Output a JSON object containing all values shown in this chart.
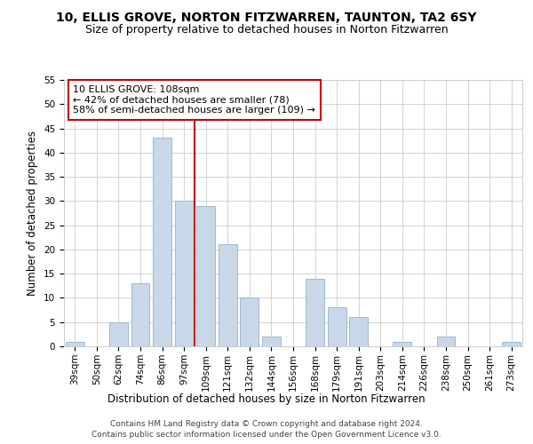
{
  "title": "10, ELLIS GROVE, NORTON FITZWARREN, TAUNTON, TA2 6SY",
  "subtitle": "Size of property relative to detached houses in Norton Fitzwarren",
  "xlabel": "Distribution of detached houses by size in Norton Fitzwarren",
  "ylabel": "Number of detached properties",
  "bar_labels": [
    "39sqm",
    "50sqm",
    "62sqm",
    "74sqm",
    "86sqm",
    "97sqm",
    "109sqm",
    "121sqm",
    "132sqm",
    "144sqm",
    "156sqm",
    "168sqm",
    "179sqm",
    "191sqm",
    "203sqm",
    "214sqm",
    "226sqm",
    "238sqm",
    "250sqm",
    "261sqm",
    "273sqm"
  ],
  "bar_values": [
    1,
    0,
    5,
    13,
    43,
    30,
    29,
    21,
    10,
    2,
    0,
    14,
    8,
    6,
    0,
    1,
    0,
    2,
    0,
    0,
    1
  ],
  "bar_color": "#c8d8e8",
  "bar_edge_color": "#a0b8cc",
  "reference_line_x_label": "109sqm",
  "reference_line_color": "#cc0000",
  "ylim": [
    0,
    55
  ],
  "yticks": [
    0,
    5,
    10,
    15,
    20,
    25,
    30,
    35,
    40,
    45,
    50,
    55
  ],
  "annotation_box_text": "10 ELLIS GROVE: 108sqm\n← 42% of detached houses are smaller (78)\n58% of semi-detached houses are larger (109) →",
  "footer_line1": "Contains HM Land Registry data © Crown copyright and database right 2024.",
  "footer_line2": "Contains public sector information licensed under the Open Government Licence v3.0.",
  "background_color": "#ffffff",
  "grid_color": "#cccccc",
  "title_fontsize": 10,
  "subtitle_fontsize": 9,
  "axis_label_fontsize": 8.5,
  "tick_fontsize": 7.5,
  "annotation_fontsize": 8,
  "footer_fontsize": 6.5
}
